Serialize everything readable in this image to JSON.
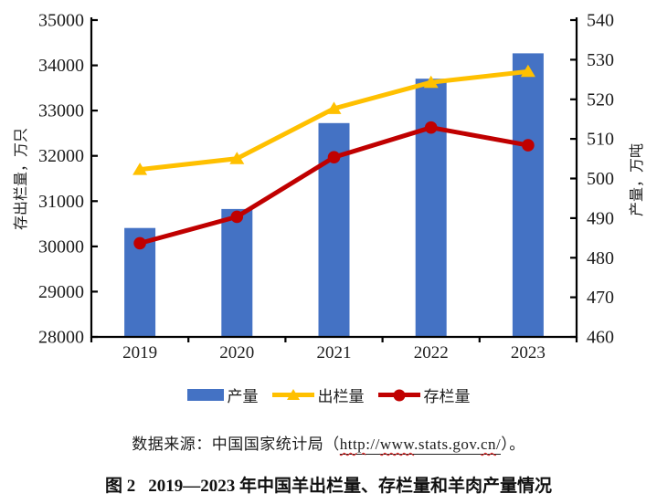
{
  "chart_data": {
    "type": "combo",
    "categories": [
      "2019",
      "2020",
      "2021",
      "2022",
      "2023"
    ],
    "series": [
      {
        "name": "产量",
        "type": "bar",
        "axis": "right",
        "color": "#4472C4",
        "values": [
          487.5,
          492.3,
          514.0,
          525.2,
          531.6
        ]
      },
      {
        "name": "出栏量",
        "type": "line",
        "marker": "triangle",
        "axis": "left",
        "color": "#FFC000",
        "values": [
          31700,
          31940,
          33045,
          33625,
          33865
        ]
      },
      {
        "name": "存栏量",
        "type": "line",
        "marker": "circle",
        "axis": "left",
        "color": "#C00000",
        "values": [
          30070,
          30655,
          31970,
          32625,
          32235
        ]
      }
    ],
    "left_axis": {
      "label": "存出栏量，万只",
      "min": 28000,
      "max": 35000,
      "step": 1000,
      "ticks": [
        28000,
        29000,
        30000,
        31000,
        32000,
        33000,
        34000,
        35000
      ]
    },
    "right_axis": {
      "label": "产量，万吨",
      "min": 460,
      "max": 540,
      "step": 10,
      "ticks": [
        460,
        470,
        480,
        490,
        500,
        510,
        520,
        530,
        540
      ]
    },
    "xlabel": "",
    "grid": false,
    "legend_position": "bottom"
  },
  "source": {
    "prefix": "数据来源：中国国家统计局（",
    "url_segments": [
      {
        "text": "http",
        "misspelled": true
      },
      {
        "text": "://",
        "misspelled": false
      },
      {
        "text": "www",
        "misspelled": true
      },
      {
        "text": ".stats.gov.",
        "misspelled": false
      },
      {
        "text": "cn",
        "misspelled": true
      },
      {
        "text": "/",
        "misspelled": false
      }
    ],
    "suffix": "）。"
  },
  "caption": {
    "figure_label": "图 2",
    "title": "2019—2023 年中国羊出栏量、存栏量和羊肉产量情况"
  }
}
